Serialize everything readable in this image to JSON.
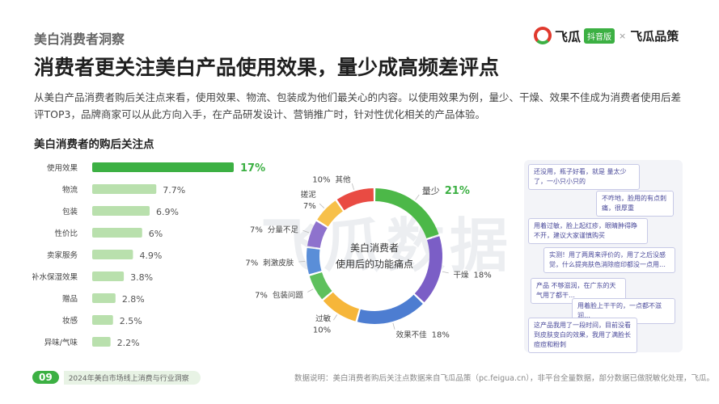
{
  "header": {
    "section_tag": "美白消费者洞察",
    "brand_name": "飞瓜",
    "brand_badge": "抖音版",
    "brand_times": "×",
    "brand_partner": "飞瓜品策"
  },
  "headline": "消费者更关注美白产品使用效果，量少成高频差评点",
  "intro": "从美白产品消费者购后关注点来看，使用效果、物流、包装成为他们最关心的内容。以使用效果为例，量少、干燥、效果不佳成为消费者使用后差评TOP3，品牌商家可以从此方向入手，在产品研发设计、营销推广时，针对性优化相关的产品体验。",
  "left_chart_title": "美白消费者的购后关注点",
  "watermark": "飞瓜数据",
  "colors": {
    "bar_highlight": "#3cb043",
    "bar_normal": "#b9e0ad",
    "highlight_text": "#3cb043",
    "brand_red": "#e0392d"
  },
  "chart_data": [
    {
      "type": "bar",
      "orientation": "horizontal",
      "title": "美白消费者的购后关注点",
      "categories": [
        "使用效果",
        "物流",
        "包装",
        "性价比",
        "卖家服务",
        "补水保湿效果",
        "赠品",
        "妆感",
        "异味/气味"
      ],
      "values": [
        17,
        7.7,
        6.9,
        6,
        4.9,
        3.8,
        2.8,
        2.5,
        2.2
      ],
      "labels": [
        "17%",
        "7.7%",
        "6.9%",
        "6%",
        "4.9%",
        "3.8%",
        "2.8%",
        "2.5%",
        "2.2%"
      ],
      "xlim": [
        0,
        17
      ],
      "highlight": "使用效果"
    },
    {
      "type": "pie",
      "variant": "donut",
      "center_text": [
        "美白消费者",
        "使用后的功能痛点"
      ],
      "categories": [
        "量少",
        "干燥",
        "效果不佳",
        "过敏",
        "包装问题",
        "刺激皮肤",
        "分量不足",
        "搓泥",
        "其他"
      ],
      "values": [
        21,
        18,
        18,
        10,
        7,
        7,
        7,
        7,
        10
      ],
      "labels": [
        "21%",
        "18%",
        "18%",
        "10%",
        "7%",
        "7%",
        "7%",
        "7%",
        "10%"
      ],
      "colors": [
        "#4cb848",
        "#7b5ec6",
        "#4d7dd1",
        "#f6b63a",
        "#5ec05d",
        "#5a8ed8",
        "#8e72cd",
        "#f7c04a",
        "#e94b43"
      ],
      "highlight": "量少"
    }
  ],
  "comments": [
    "还没用，瓶子好看，就是 量太少了，一小只小只的",
    "不咋地，脸用的有点刺痛，很厚重",
    "用着过敏，脸上起红疹，眼睛肿得睁不开，建议大家谨慎购买",
    "实测！用了两周来评价的，用了之后没感觉，什么提亮肤色消除痘印都没一点用…",
    "产品 不够滋润，在广东的天气用了都干…",
    "用着脸上干干的，一点都不滋润…",
    "这产品我用了一段时间，目前没看到皮肤变白的效果，我用了满脸长痘痘和粉刺"
  ],
  "footer": {
    "page_number": "09",
    "report_title": "2024年美白市场线上消费与行业洞察",
    "note": "数据说明：美白消费者购后关注点数据来自飞瓜品策（pc.feigua.cn），非平台全量数据，部分数据已做脱敏化处理，飞瓜。"
  }
}
